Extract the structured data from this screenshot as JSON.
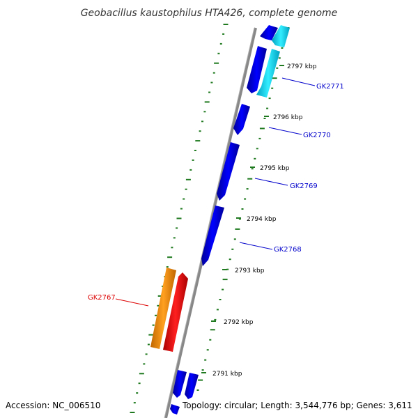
{
  "title": "Geobacillus kaustophilus HTA426, complete genome",
  "footer": {
    "accession": "Accession: NC_006510",
    "topology": "Topology: circular; Length: 3,544,776 bp; Genes: 3,611"
  },
  "colors": {
    "backbone": "#808080",
    "tick": "#1f7a1f",
    "forward_gene": "#0000ee",
    "reverse_gene": "#00ddff",
    "highlight_gene": "#ff0000",
    "highlight_label": "#dd0000",
    "adjacent_gene": "#ff9900",
    "label_line": "#0000cc"
  },
  "ticks": [
    {
      "label": "2797 kbp"
    },
    {
      "label": "2796 kbp"
    },
    {
      "label": "2795 kbp"
    },
    {
      "label": "2794 kbp"
    },
    {
      "label": "2793 kbp"
    },
    {
      "label": "2792 kbp"
    },
    {
      "label": "2791 kbp"
    }
  ],
  "gene_labels": [
    {
      "name": "GK2771",
      "highlight": false
    },
    {
      "name": "GK2770",
      "highlight": false
    },
    {
      "name": "GK2769",
      "highlight": false
    },
    {
      "name": "GK2768",
      "highlight": false
    },
    {
      "name": "GK2767",
      "highlight": true
    }
  ]
}
